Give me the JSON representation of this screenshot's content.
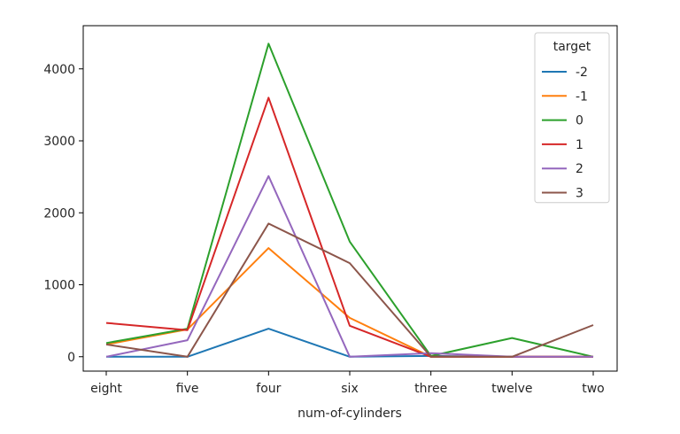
{
  "chart_data": {
    "type": "line",
    "title": "",
    "xlabel": "num-of-cylinders",
    "ylabel": "",
    "categories": [
      "eight",
      "five",
      "four",
      "six",
      "three",
      "twelve",
      "two"
    ],
    "ylim": [
      -200,
      4600
    ],
    "yticks": [
      0,
      1000,
      2000,
      3000,
      4000
    ],
    "grid": false,
    "legend": {
      "title": "target",
      "placement": "top-right"
    },
    "series": [
      {
        "name": "-2",
        "color": "#1f77b4",
        "values": [
          0,
          0,
          390,
          0,
          10,
          0,
          0
        ]
      },
      {
        "name": "-1",
        "color": "#ff7f0e",
        "values": [
          170,
          380,
          1510,
          540,
          0,
          0,
          0
        ]
      },
      {
        "name": "0",
        "color": "#2ca02c",
        "values": [
          190,
          390,
          4350,
          1600,
          10,
          260,
          0
        ]
      },
      {
        "name": "1",
        "color": "#d62728",
        "values": [
          470,
          370,
          3600,
          430,
          0,
          0,
          0
        ]
      },
      {
        "name": "2",
        "color": "#9467bd",
        "values": [
          0,
          230,
          2510,
          0,
          50,
          0,
          0
        ]
      },
      {
        "name": "3",
        "color": "#8c564b",
        "values": [
          170,
          0,
          1850,
          1300,
          0,
          0,
          440
        ]
      }
    ]
  }
}
